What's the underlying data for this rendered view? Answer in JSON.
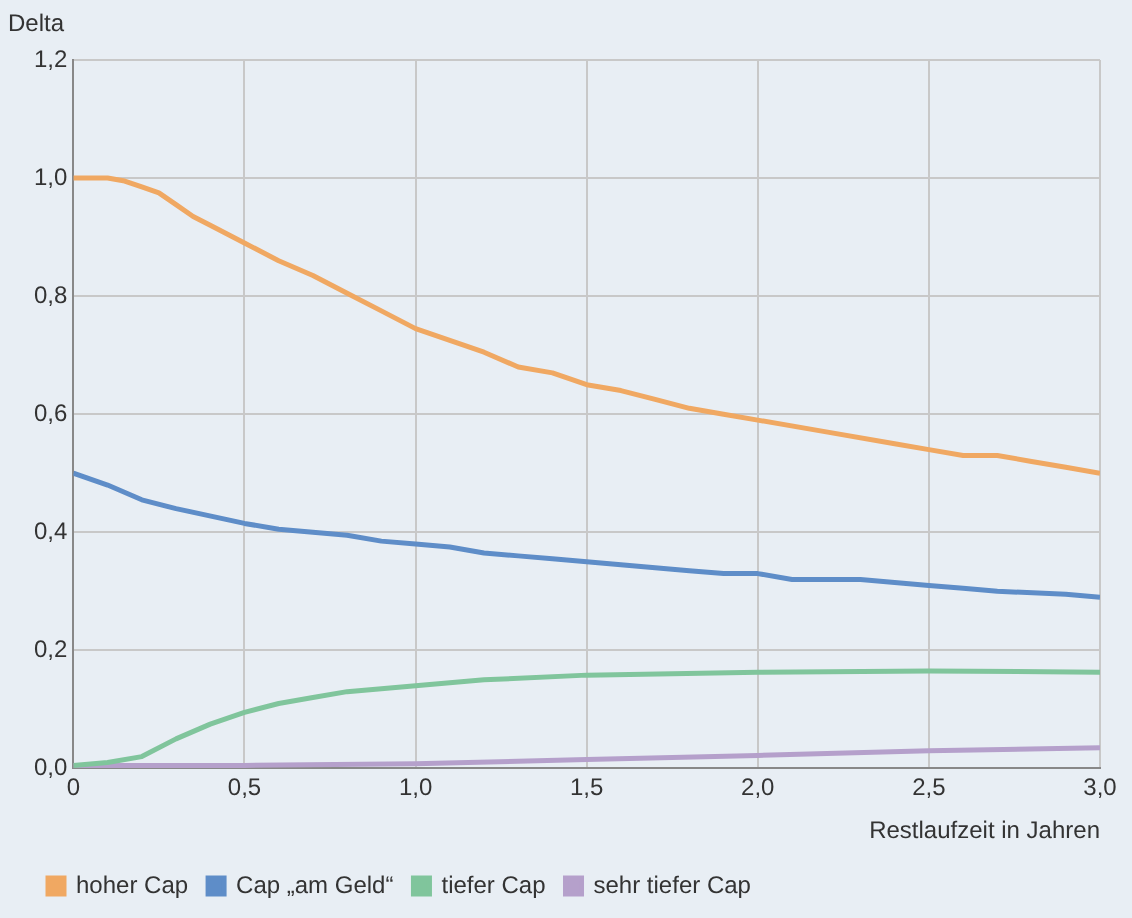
{
  "chart_data": {
    "type": "line",
    "xlabel": "Restlaufzeit in Jahren",
    "ylabel": "Delta",
    "xlim": [
      0,
      3
    ],
    "ylim": [
      0,
      1.2
    ],
    "xticks": [
      0,
      {
        "value": 0.5,
        "label": "0,5"
      },
      {
        "value": 1,
        "label": "1,0"
      },
      {
        "value": 1.5,
        "label": "1,5"
      },
      {
        "value": 2,
        "label": "2,0"
      },
      {
        "value": 2.5,
        "label": "2,5"
      },
      {
        "value": 3,
        "label": "3,0"
      }
    ],
    "yticks": [
      {
        "value": 0,
        "label": "0,0"
      },
      {
        "value": 0.2,
        "label": "0,2"
      },
      {
        "value": 0.4,
        "label": "0,4"
      },
      {
        "value": 0.6,
        "label": "0,6"
      },
      {
        "value": 0.8,
        "label": "0,8"
      },
      {
        "value": 1,
        "label": "1,0"
      },
      {
        "value": 1.2,
        "label": "1,2"
      }
    ],
    "grid": true,
    "legend": "bottom left",
    "marker": "none",
    "line_style": "solid",
    "series": [
      {
        "name": "hoher Cap",
        "color": "#f0a862",
        "x": [
          0,
          0.1,
          0.15,
          0.2,
          0.25,
          0.3,
          0.35,
          0.4,
          0.5,
          0.6,
          0.7,
          0.8,
          0.9,
          1.0,
          1.1,
          1.2,
          1.3,
          1.4,
          1.5,
          1.6,
          1.7,
          1.8,
          1.9,
          2.0,
          2.2,
          2.4,
          2.5,
          2.6,
          2.7,
          2.8,
          2.9,
          3.0
        ],
        "values": [
          1.0,
          1.0,
          0.995,
          0.985,
          0.975,
          0.955,
          0.935,
          0.92,
          0.89,
          0.86,
          0.835,
          0.805,
          0.775,
          0.745,
          0.725,
          0.705,
          0.68,
          0.67,
          0.65,
          0.64,
          0.625,
          0.61,
          0.6,
          0.59,
          0.57,
          0.55,
          0.54,
          0.53,
          0.53,
          0.52,
          0.51,
          0.5
        ]
      },
      {
        "name": "Cap „am Geld“",
        "color": "#5e8dc8",
        "x": [
          0,
          0.1,
          0.2,
          0.3,
          0.5,
          0.6,
          0.7,
          0.8,
          0.9,
          1.0,
          1.1,
          1.2,
          1.3,
          1.4,
          1.5,
          1.6,
          1.7,
          1.8,
          1.9,
          2.0,
          2.1,
          2.3,
          2.4,
          2.5,
          2.6,
          2.7,
          2.9,
          3.0
        ],
        "values": [
          0.5,
          0.48,
          0.455,
          0.44,
          0.415,
          0.405,
          0.4,
          0.395,
          0.385,
          0.38,
          0.375,
          0.365,
          0.36,
          0.355,
          0.35,
          0.345,
          0.34,
          0.335,
          0.33,
          0.33,
          0.32,
          0.32,
          0.315,
          0.31,
          0.305,
          0.3,
          0.295,
          0.29
        ]
      },
      {
        "name": "tiefer Cap",
        "color": "#80c59c",
        "x": [
          0,
          0.1,
          0.2,
          0.3,
          0.4,
          0.5,
          0.6,
          0.7,
          0.8,
          1.0,
          1.2,
          1.5,
          2.0,
          2.5,
          3.0
        ],
        "values": [
          0.005,
          0.01,
          0.02,
          0.05,
          0.075,
          0.095,
          0.11,
          0.12,
          0.13,
          0.14,
          0.15,
          0.158,
          0.163,
          0.165,
          0.163
        ]
      },
      {
        "name": "sehr tiefer Cap",
        "color": "#b5a0cb",
        "x": [
          0,
          0.5,
          1.0,
          1.5,
          2.0,
          2.5,
          3.0
        ],
        "values": [
          0.005,
          0.005,
          0.008,
          0.015,
          0.022,
          0.03,
          0.035
        ]
      }
    ]
  }
}
